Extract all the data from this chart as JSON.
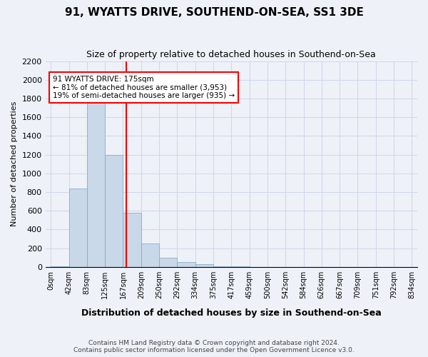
{
  "title": "91, WYATTS DRIVE, SOUTHEND-ON-SEA, SS1 3DE",
  "subtitle": "Size of property relative to detached houses in Southend-on-Sea",
  "xlabel": "Distribution of detached houses by size in Southend-on-Sea",
  "ylabel": "Number of detached properties",
  "footnote1": "Contains HM Land Registry data © Crown copyright and database right 2024.",
  "footnote2": "Contains public sector information licensed under the Open Government Licence v3.0.",
  "bin_labels": [
    "0sqm",
    "42sqm",
    "83sqm",
    "125sqm",
    "167sqm",
    "209sqm",
    "250sqm",
    "292sqm",
    "334sqm",
    "375sqm",
    "417sqm",
    "459sqm",
    "500sqm",
    "542sqm",
    "584sqm",
    "626sqm",
    "667sqm",
    "709sqm",
    "751sqm",
    "792sqm",
    "834sqm"
  ],
  "bar_values": [
    10,
    840,
    1790,
    1200,
    580,
    250,
    100,
    55,
    30,
    10,
    5,
    0,
    0,
    0,
    0,
    0,
    0,
    0,
    0,
    0
  ],
  "bar_color": "#c8d8e8",
  "bar_edge_color": "#7ca4c4",
  "grid_color": "#d0d8e8",
  "background_color": "#eef2f8",
  "annotation_text1": "91 WYATTS DRIVE: 175sqm",
  "annotation_text2": "← 81% of detached houses are smaller (3,953)",
  "annotation_text3": "19% of semi-detached houses are larger (935) →",
  "ylim": [
    0,
    2200
  ],
  "yticks": [
    0,
    200,
    400,
    600,
    800,
    1000,
    1200,
    1400,
    1600,
    1800,
    2000,
    2200
  ],
  "property_sqm": 175,
  "bin_edges_sqm": [
    0,
    42,
    83,
    125,
    167,
    209,
    250,
    292,
    334,
    375,
    417,
    459,
    500,
    542,
    584,
    626,
    667,
    709,
    751,
    792,
    834
  ]
}
